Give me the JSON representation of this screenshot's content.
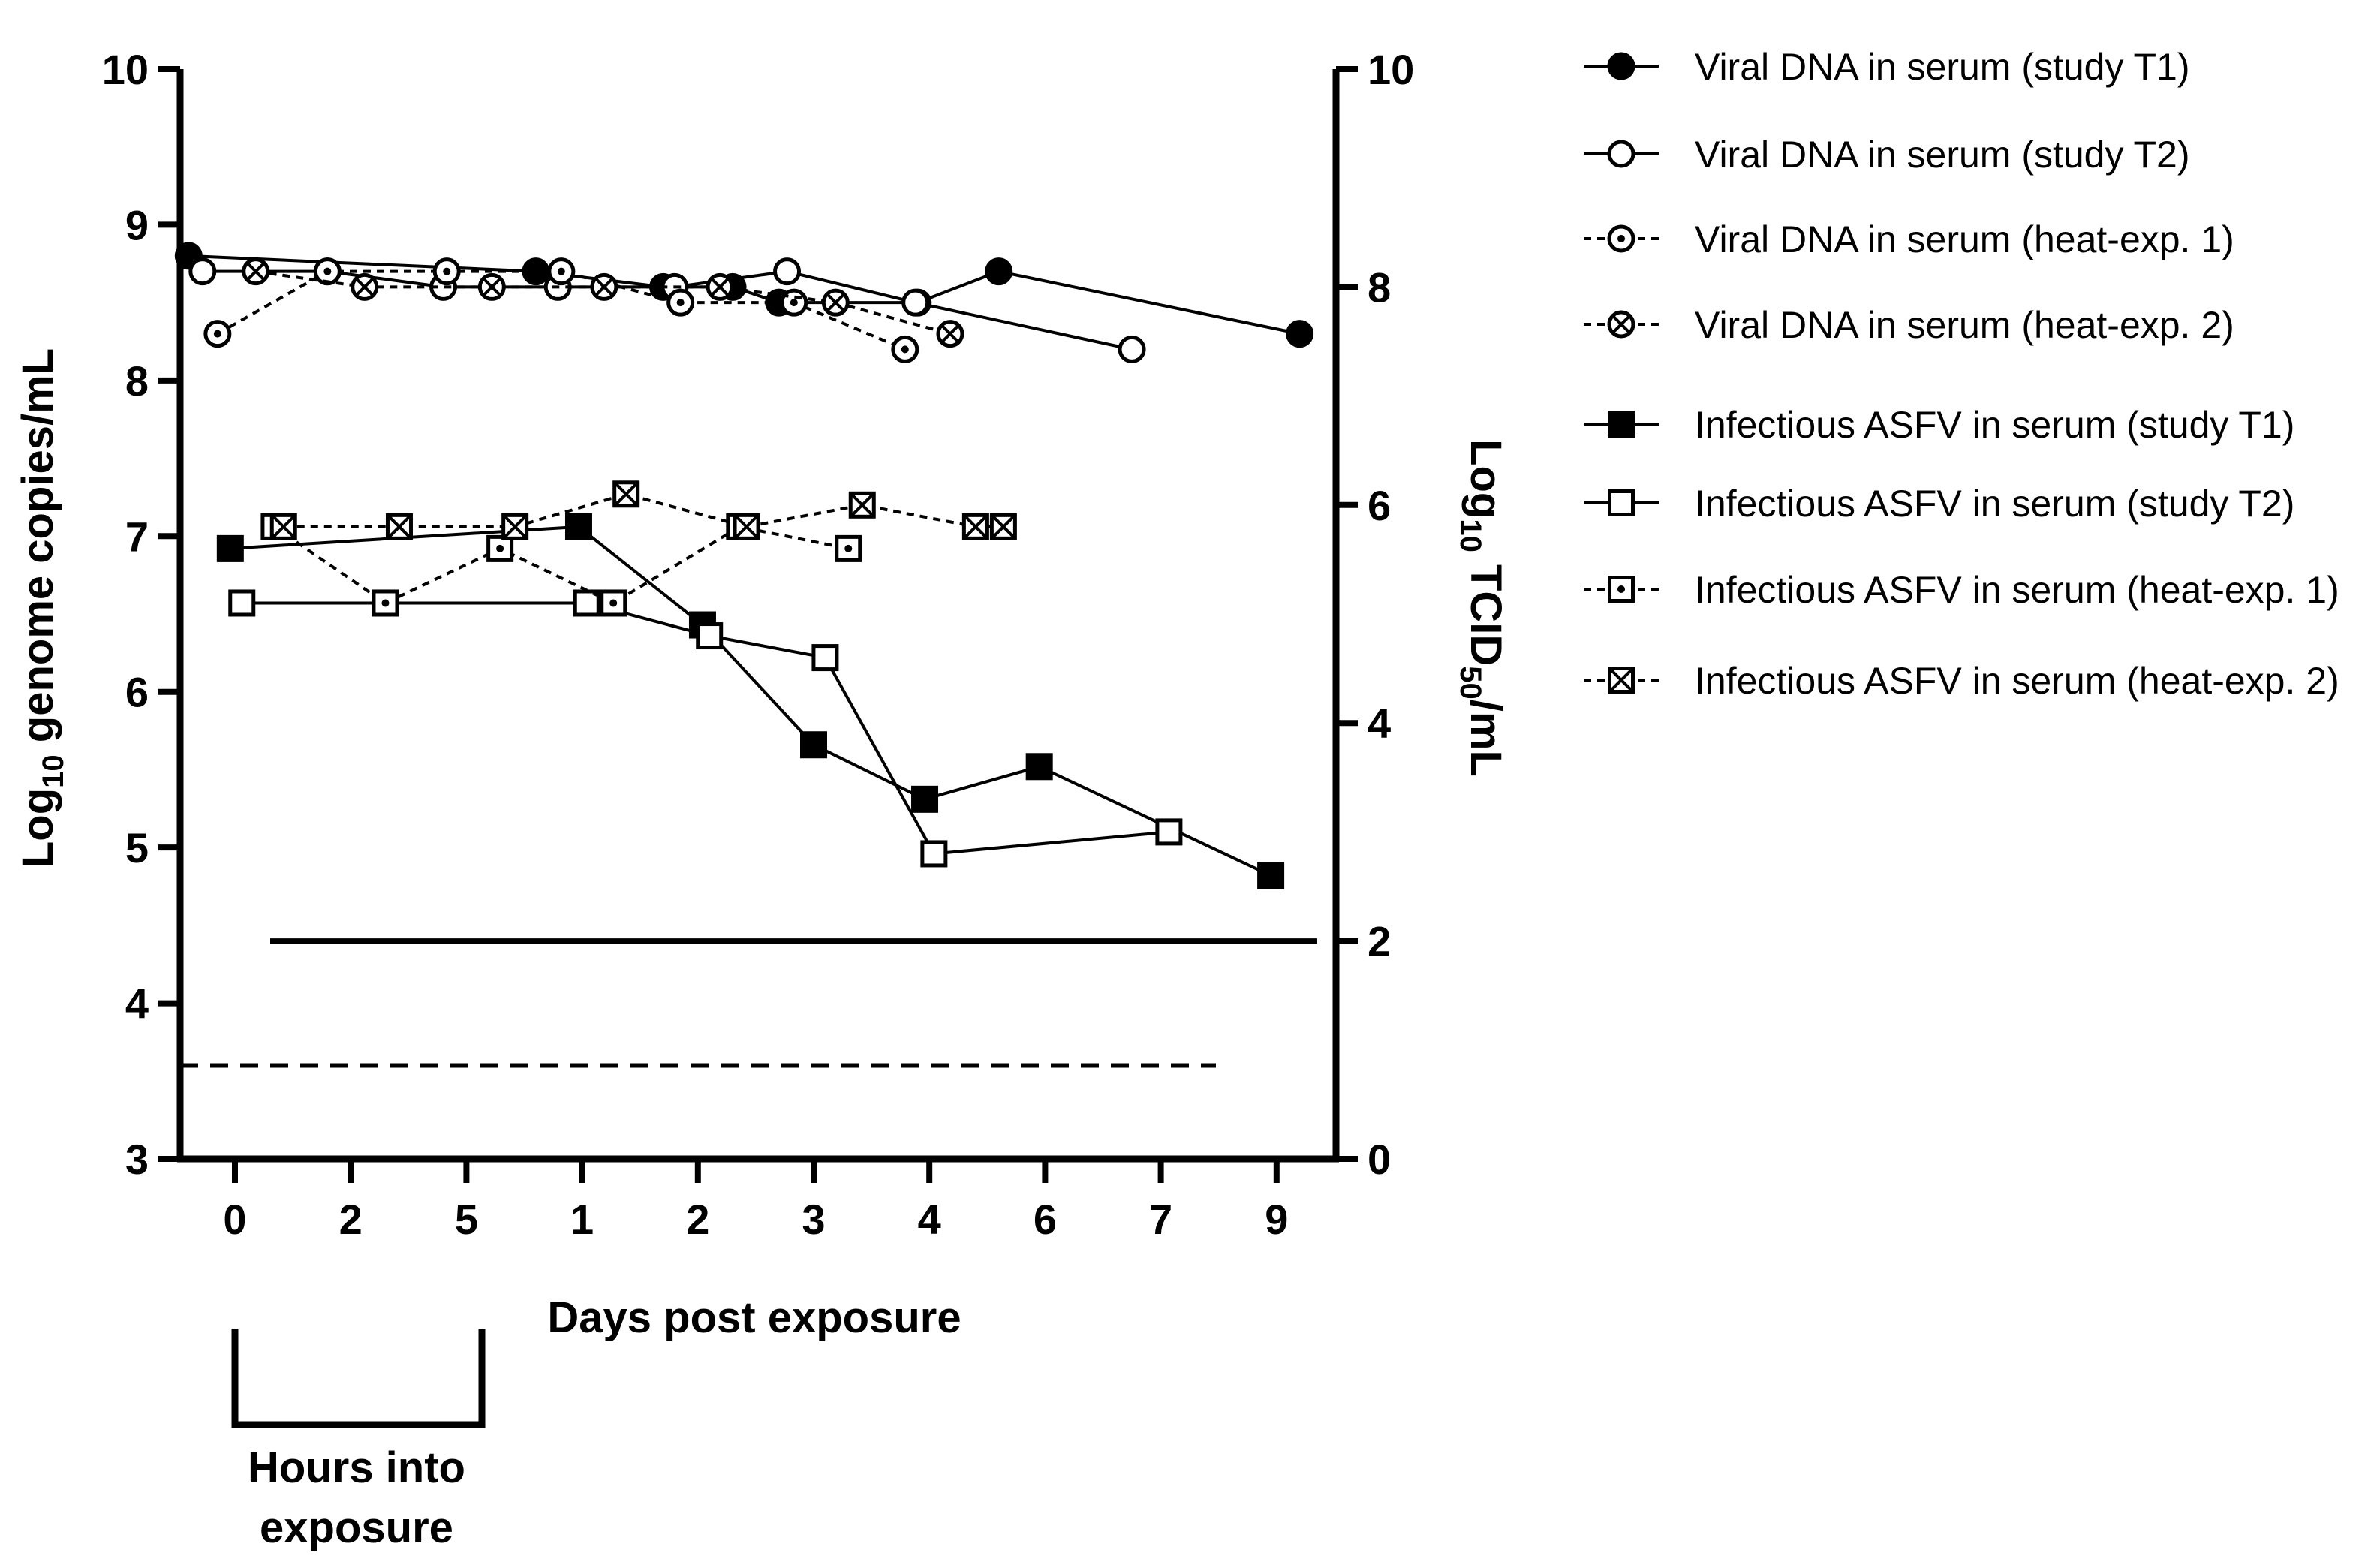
{
  "chart_data": {
    "type": "line",
    "x_axis": {
      "label": "Days post exposure",
      "tick_labels": [
        "0",
        "2",
        "5",
        "1",
        "2",
        "3",
        "4",
        "6",
        "7",
        "9"
      ],
      "bracket_label_line1": "Hours into",
      "bracket_label_line2": "exposure"
    },
    "y_left": {
      "label_prefix": "Log",
      "label_sub": "10",
      "label_suffix": " genome copies/mL",
      "range": [
        3,
        10
      ],
      "ticks": [
        3,
        4,
        5,
        6,
        7,
        8,
        9,
        10
      ]
    },
    "y_right": {
      "label_prefix": "Log",
      "label_sub1": "10",
      "label_mid": " TCID",
      "label_sub2": "50",
      "label_suffix": "/mL",
      "range": [
        0,
        10
      ],
      "ticks": [
        0,
        2,
        4,
        6,
        8,
        10
      ]
    },
    "detection_limits": {
      "tcid50_solid_right_axis": 2,
      "genome_dashed_left_axis": 3.6
    },
    "series": [
      {
        "name": "Viral DNA in serum (study T1)",
        "axis": "left",
        "marker": "circle-filled",
        "line": "solid",
        "x": [
          -0.4,
          2.6,
          3.7,
          4.3,
          4.7,
          5.9,
          6.6,
          9.2
        ],
        "y": [
          8.8,
          8.7,
          8.6,
          8.6,
          8.5,
          8.5,
          8.7,
          8.3
        ]
      },
      {
        "name": "Viral DNA in serum (study T2)",
        "axis": "left",
        "marker": "circle-open",
        "line": "solid",
        "x": [
          -0.28,
          0.8,
          1.8,
          2.79,
          3.8,
          4.77,
          5.88,
          7.75
        ],
        "y": [
          8.7,
          8.7,
          8.6,
          8.6,
          8.6,
          8.7,
          8.5,
          8.2
        ]
      },
      {
        "name": "Viral DNA in serum (heat-exp. 1)",
        "axis": "left",
        "marker": "circle-dot",
        "line": "dashed",
        "x": [
          -0.15,
          0.8,
          1.83,
          2.82,
          3.85,
          4.83,
          5.79
        ],
        "y": [
          8.3,
          8.7,
          8.7,
          8.7,
          8.5,
          8.5,
          8.2
        ]
      },
      {
        "name": "Viral DNA in serum (heat-exp. 2)",
        "axis": "left",
        "marker": "circle-cross",
        "line": "dashed",
        "x": [
          0.18,
          1.12,
          2.22,
          3.19,
          4.19,
          5.19,
          6.18
        ],
        "y": [
          8.7,
          8.6,
          8.6,
          8.6,
          8.6,
          8.5,
          8.3
        ]
      },
      {
        "name": "Infectious ASFV in serum (study T1)",
        "axis": "right",
        "marker": "square-filled",
        "line": "solid",
        "x": [
          -0.04,
          2.97,
          4.04,
          5.0,
          5.96,
          6.95,
          8.95
        ],
        "y": [
          5.6,
          5.8,
          4.9,
          3.8,
          3.3,
          3.6,
          2.6
        ]
      },
      {
        "name": "Infectious ASFV in serum (study T2)",
        "axis": "right",
        "marker": "square-open",
        "line": "solid",
        "x": [
          0.06,
          1.3,
          3.04,
          4.1,
          5.1,
          6.04,
          8.07
        ],
        "y": [
          5.1,
          5.1,
          5.1,
          4.8,
          4.6,
          2.8,
          3.0
        ]
      },
      {
        "name": "Infectious ASFV in serum (heat-exp. 1)",
        "axis": "right",
        "marker": "square-dot",
        "line": "dashed",
        "x": [
          0.34,
          1.3,
          2.29,
          3.27,
          4.36,
          5.3
        ],
        "y": [
          5.8,
          5.1,
          5.6,
          5.1,
          5.8,
          5.6
        ]
      },
      {
        "name": "Infectious ASFV in serum (heat-exp. 2)",
        "axis": "right",
        "marker": "square-cross",
        "line": "dashed",
        "x": [
          0.42,
          1.42,
          2.42,
          3.38,
          4.42,
          5.42,
          6.4,
          6.64
        ],
        "y": [
          5.8,
          5.8,
          5.8,
          6.1,
          5.8,
          6.0,
          5.8,
          5.8
        ]
      }
    ],
    "legend_position": "right",
    "grid": false
  }
}
